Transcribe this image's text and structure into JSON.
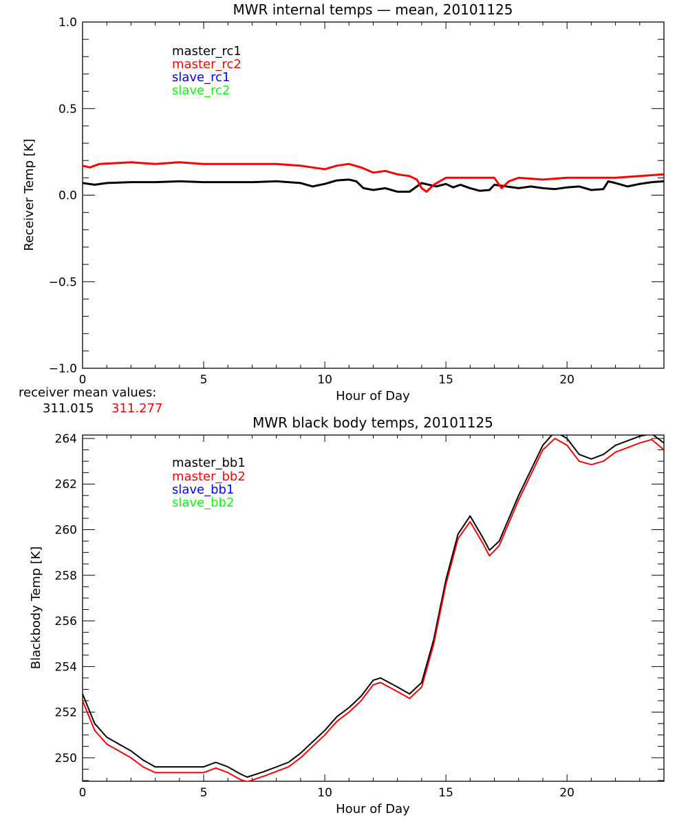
{
  "chart_data": [
    {
      "type": "line",
      "title": "MWR internal temps — mean, 20101125",
      "xlabel": "Hour of Day",
      "ylabel": "Receiver Temp [K]",
      "xlim": [
        0,
        24
      ],
      "ylim": [
        -1.0,
        1.0
      ],
      "xticks": [
        "0",
        "5",
        "10",
        "15",
        "20"
      ],
      "yticks": [
        "−1.0",
        "−0.5",
        "0.0",
        "0.5",
        "1.0"
      ],
      "legend": [
        "master_rc1",
        "master_rc2",
        "slave_rc1",
        "slave_rc2"
      ],
      "legend_colors": [
        "#000000",
        "#ff0000",
        "#0000ff",
        "#00ff00"
      ],
      "legend_placement": "top-left",
      "series": [
        {
          "name": "master_rc1",
          "color": "#000000",
          "x": [
            0,
            0.5,
            1,
            2,
            3,
            4,
            5,
            6,
            7,
            8,
            9,
            9.5,
            10,
            10.5,
            11,
            11.3,
            11.6,
            12,
            12.5,
            13,
            13.5,
            13.8,
            14,
            14.3,
            14.6,
            15,
            15.3,
            15.6,
            16,
            16.4,
            16.8,
            17,
            17.5,
            18,
            18.5,
            19,
            19.5,
            20,
            20.5,
            21,
            21.5,
            21.7,
            22,
            22.5,
            23,
            23.5,
            24
          ],
          "y": [
            0.07,
            0.06,
            0.07,
            0.075,
            0.075,
            0.08,
            0.075,
            0.075,
            0.075,
            0.08,
            0.07,
            0.05,
            0.065,
            0.085,
            0.09,
            0.08,
            0.04,
            0.03,
            0.04,
            0.02,
            0.02,
            0.05,
            0.07,
            0.06,
            0.05,
            0.065,
            0.045,
            0.06,
            0.04,
            0.025,
            0.03,
            0.06,
            0.05,
            0.04,
            0.05,
            0.04,
            0.035,
            0.045,
            0.05,
            0.03,
            0.035,
            0.08,
            0.07,
            0.05,
            0.065,
            0.075,
            0.08
          ]
        },
        {
          "name": "master_rc2",
          "color": "#ff0000",
          "x": [
            0,
            0.3,
            0.7,
            2,
            3,
            4,
            5,
            6,
            7,
            8,
            9,
            9.5,
            10,
            10.5,
            11,
            11.5,
            12,
            12.5,
            13,
            13.5,
            13.8,
            14,
            14.2,
            14.5,
            15,
            16,
            17,
            17.3,
            17.6,
            18,
            19,
            20,
            21,
            22,
            23,
            24
          ],
          "y": [
            0.17,
            0.16,
            0.18,
            0.19,
            0.18,
            0.19,
            0.18,
            0.18,
            0.18,
            0.18,
            0.17,
            0.16,
            0.15,
            0.17,
            0.18,
            0.16,
            0.13,
            0.14,
            0.12,
            0.11,
            0.09,
            0.04,
            0.02,
            0.06,
            0.1,
            0.1,
            0.1,
            0.04,
            0.08,
            0.1,
            0.09,
            0.1,
            0.1,
            0.1,
            0.11,
            0.12
          ]
        }
      ],
      "annotation_label": "receiver mean values:",
      "annotation_values": [
        {
          "text": "311.015",
          "color": "#000000"
        },
        {
          "text": "311.277",
          "color": "#ff0000"
        }
      ]
    },
    {
      "type": "line",
      "title": "MWR black body temps, 20101125",
      "xlabel": "Hour of Day",
      "ylabel": "Blackbody Temp [K]",
      "xlim": [
        0,
        24
      ],
      "ylim": [
        248.97,
        264.15
      ],
      "xticks": [
        "0",
        "5",
        "10",
        "15",
        "20"
      ],
      "yticks": [
        "250",
        "252",
        "254",
        "256",
        "258",
        "260",
        "262",
        "264"
      ],
      "legend": [
        "master_bb1",
        "master_bb2",
        "slave_bb1",
        "slave_bb2"
      ],
      "legend_colors": [
        "#000000",
        "#ff0000",
        "#0000ff",
        "#00ff00"
      ],
      "legend_placement": "top-left",
      "series": [
        {
          "name": "master_bb1",
          "color": "#000000",
          "x": [
            0,
            0.5,
            1,
            1.5,
            2,
            2.5,
            3,
            4,
            5,
            5.5,
            6,
            6.5,
            6.8,
            7.5,
            8.5,
            9,
            10,
            10.5,
            11,
            11.5,
            12,
            12.3,
            13,
            13.5,
            14,
            14.5,
            15,
            15.5,
            16,
            16.5,
            16.8,
            17.2,
            18,
            19,
            19.5,
            20,
            20.5,
            21,
            21.5,
            22,
            23,
            23.5,
            24
          ],
          "y": [
            252.8,
            251.5,
            250.9,
            250.6,
            250.3,
            249.9,
            249.6,
            249.6,
            249.6,
            249.8,
            249.6,
            249.3,
            249.15,
            249.4,
            249.8,
            250.2,
            251.2,
            251.8,
            252.2,
            252.7,
            253.4,
            253.5,
            253.1,
            252.8,
            253.3,
            255.2,
            257.8,
            259.8,
            260.6,
            259.7,
            259.1,
            259.5,
            261.5,
            263.7,
            264.3,
            264.0,
            263.3,
            263.1,
            263.3,
            263.7,
            264.1,
            264.2,
            263.8
          ]
        },
        {
          "name": "master_bb2",
          "color": "#ff0000",
          "x": [
            0,
            0.5,
            1,
            1.5,
            2,
            2.5,
            3,
            4,
            5,
            5.5,
            6,
            6.5,
            6.8,
            7.5,
            8.5,
            9,
            10,
            10.5,
            11,
            11.5,
            12,
            12.3,
            13,
            13.5,
            14,
            14.5,
            15,
            15.5,
            16,
            16.5,
            16.8,
            17.2,
            18,
            19,
            19.5,
            20,
            20.5,
            21,
            21.5,
            22,
            23,
            23.5,
            24
          ],
          "y": [
            252.5,
            251.2,
            250.6,
            250.3,
            250.0,
            249.6,
            249.35,
            249.35,
            249.35,
            249.55,
            249.35,
            249.05,
            248.95,
            249.2,
            249.6,
            250.0,
            251.0,
            251.6,
            252.0,
            252.5,
            253.2,
            253.3,
            252.9,
            252.6,
            253.1,
            255.0,
            257.6,
            259.6,
            260.35,
            259.45,
            258.85,
            259.3,
            261.3,
            263.5,
            264.0,
            263.7,
            263.0,
            262.85,
            263.0,
            263.4,
            263.8,
            263.95,
            263.5
          ]
        }
      ]
    }
  ]
}
